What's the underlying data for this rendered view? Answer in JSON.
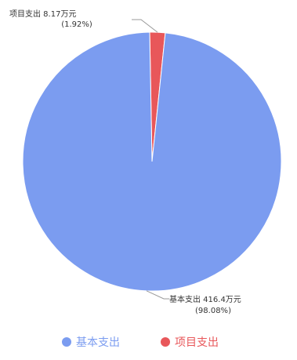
{
  "chart_data": {
    "type": "pie",
    "title": "",
    "slices": [
      {
        "name": "基本支出",
        "value": 416.4,
        "percent": 98.08,
        "label_line1": "基本支出 416.4万元",
        "label_line2": "(98.08%)",
        "color": "#7b9cf0"
      },
      {
        "name": "项目支出",
        "value": 8.17,
        "percent": 1.92,
        "label_line1": "项目支出 8.17万元",
        "label_line2": "(1.92%)",
        "color": "#e8575a"
      }
    ],
    "legend": {
      "position": "bottom",
      "items": [
        "基本支出",
        "项目支出"
      ]
    }
  }
}
